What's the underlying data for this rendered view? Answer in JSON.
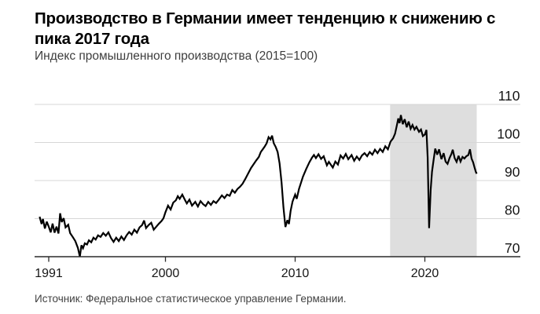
{
  "header": {
    "title_line1": "Производство в Германии имеет тенденцию к снижению с",
    "title_line2": "пика 2017 года",
    "subtitle": "Индекс промышленного производства (2015=100)"
  },
  "footer": {
    "source": "Источник: Федеральное статистическое управление Германии."
  },
  "chart_data": {
    "type": "line",
    "title": "Производство в Германии имеет тенденцию к снижению с пика 2017 года",
    "subtitle": "Индекс промышленного производства (2015=100)",
    "source": "Источник: Федеральное статистическое управление Германии.",
    "xlabel": "",
    "ylabel": "",
    "xlim": [
      1989.9,
      2027.4
    ],
    "ylim": [
      70,
      110
    ],
    "grid": true,
    "legend_position": "none",
    "x_ticks": [
      1991,
      2000,
      2010,
      2020
    ],
    "x_tick_labels": [
      "1991",
      "2000",
      "2010",
      "2020"
    ],
    "y_ticks": [
      70,
      80,
      90,
      100,
      110
    ],
    "y_tick_labels": [
      "70",
      "80",
      "90",
      "100",
      "110"
    ],
    "highlight_band": {
      "from": 2017.32,
      "to": 2024.0,
      "color": "#dedede",
      "meaning": "период снижения с пика 2017 года"
    },
    "line_color": "#000000",
    "grid_color": "#d7d7d7",
    "axis_color": "#2a2a2a",
    "label_color": "#161616",
    "series": [
      {
        "name": "Индекс промышленного производства Германии (2015=100)",
        "points": [
          [
            1990.3,
            80.5
          ],
          [
            1990.45,
            78.6
          ],
          [
            1990.55,
            79.9
          ],
          [
            1990.7,
            77.4
          ],
          [
            1990.85,
            79.2
          ],
          [
            1991.0,
            77.9
          ],
          [
            1991.15,
            76.4
          ],
          [
            1991.3,
            78.7
          ],
          [
            1991.45,
            76.3
          ],
          [
            1991.6,
            77.9
          ],
          [
            1991.75,
            76.1
          ],
          [
            1991.88,
            81.4
          ],
          [
            1992.0,
            79.1
          ],
          [
            1992.15,
            80.1
          ],
          [
            1992.3,
            77.7
          ],
          [
            1992.5,
            78.4
          ],
          [
            1992.65,
            76.2
          ],
          [
            1992.85,
            75.2
          ],
          [
            1993.05,
            74.1
          ],
          [
            1993.25,
            72.3
          ],
          [
            1993.4,
            70.0
          ],
          [
            1993.52,
            73.0
          ],
          [
            1993.64,
            72.2
          ],
          [
            1993.78,
            73.5
          ],
          [
            1993.95,
            73.2
          ],
          [
            1994.1,
            74.3
          ],
          [
            1994.28,
            73.8
          ],
          [
            1994.45,
            75.0
          ],
          [
            1994.62,
            74.5
          ],
          [
            1994.8,
            75.6
          ],
          [
            1995.0,
            75.2
          ],
          [
            1995.2,
            76.2
          ],
          [
            1995.4,
            75.5
          ],
          [
            1995.6,
            76.4
          ],
          [
            1995.8,
            74.9
          ],
          [
            1996.0,
            73.9
          ],
          [
            1996.2,
            75.0
          ],
          [
            1996.4,
            74.1
          ],
          [
            1996.6,
            75.3
          ],
          [
            1996.8,
            74.4
          ],
          [
            1997.0,
            75.6
          ],
          [
            1997.2,
            76.5
          ],
          [
            1997.4,
            75.8
          ],
          [
            1997.6,
            77.1
          ],
          [
            1997.8,
            76.3
          ],
          [
            1998.0,
            77.7
          ],
          [
            1998.2,
            78.3
          ],
          [
            1998.35,
            79.5
          ],
          [
            1998.5,
            77.5
          ],
          [
            1998.7,
            78.3
          ],
          [
            1998.9,
            78.9
          ],
          [
            1999.1,
            77.1
          ],
          [
            1999.3,
            77.9
          ],
          [
            1999.5,
            78.7
          ],
          [
            1999.7,
            79.4
          ],
          [
            1999.85,
            80.1
          ],
          [
            2000.0,
            81.7
          ],
          [
            2000.2,
            83.4
          ],
          [
            2000.4,
            82.4
          ],
          [
            2000.6,
            84.2
          ],
          [
            2000.8,
            84.8
          ],
          [
            2000.95,
            85.9
          ],
          [
            2001.1,
            85.2
          ],
          [
            2001.3,
            86.3
          ],
          [
            2001.5,
            84.9
          ],
          [
            2001.65,
            84.0
          ],
          [
            2001.85,
            85.0
          ],
          [
            2002.05,
            83.4
          ],
          [
            2002.3,
            84.4
          ],
          [
            2002.5,
            83.2
          ],
          [
            2002.7,
            84.6
          ],
          [
            2002.9,
            83.8
          ],
          [
            2003.1,
            83.3
          ],
          [
            2003.3,
            84.4
          ],
          [
            2003.5,
            83.6
          ],
          [
            2003.7,
            84.6
          ],
          [
            2003.9,
            84.1
          ],
          [
            2004.1,
            84.9
          ],
          [
            2004.35,
            86.1
          ],
          [
            2004.55,
            85.4
          ],
          [
            2004.75,
            86.3
          ],
          [
            2004.95,
            86.0
          ],
          [
            2005.15,
            87.5
          ],
          [
            2005.35,
            86.8
          ],
          [
            2005.55,
            87.8
          ],
          [
            2005.75,
            88.4
          ],
          [
            2005.95,
            89.2
          ],
          [
            2006.15,
            90.4
          ],
          [
            2006.4,
            92.0
          ],
          [
            2006.6,
            93.3
          ],
          [
            2006.8,
            94.3
          ],
          [
            2007.0,
            95.3
          ],
          [
            2007.2,
            96.2
          ],
          [
            2007.35,
            97.5
          ],
          [
            2007.5,
            98.2
          ],
          [
            2007.65,
            98.9
          ],
          [
            2007.8,
            99.8
          ],
          [
            2007.95,
            101.4
          ],
          [
            2008.1,
            100.8
          ],
          [
            2008.22,
            101.8
          ],
          [
            2008.35,
            99.8
          ],
          [
            2008.5,
            98.8
          ],
          [
            2008.65,
            97.5
          ],
          [
            2008.8,
            94.5
          ],
          [
            2008.95,
            89.5
          ],
          [
            2009.1,
            83.0
          ],
          [
            2009.25,
            77.8
          ],
          [
            2009.4,
            79.6
          ],
          [
            2009.52,
            78.6
          ],
          [
            2009.65,
            82.0
          ],
          [
            2009.8,
            84.5
          ],
          [
            2010.0,
            86.3
          ],
          [
            2010.12,
            85.2
          ],
          [
            2010.3,
            87.8
          ],
          [
            2010.6,
            91.0
          ],
          [
            2010.85,
            93.0
          ],
          [
            2011.1,
            94.8
          ],
          [
            2011.3,
            96.0
          ],
          [
            2011.45,
            96.7
          ],
          [
            2011.6,
            95.9
          ],
          [
            2011.8,
            96.9
          ],
          [
            2012.0,
            95.7
          ],
          [
            2012.2,
            96.4
          ],
          [
            2012.45,
            94.0
          ],
          [
            2012.6,
            94.9
          ],
          [
            2012.9,
            93.4
          ],
          [
            2013.1,
            95.0
          ],
          [
            2013.3,
            94.2
          ],
          [
            2013.5,
            96.6
          ],
          [
            2013.7,
            95.8
          ],
          [
            2013.9,
            97.0
          ],
          [
            2014.1,
            95.6
          ],
          [
            2014.35,
            96.7
          ],
          [
            2014.55,
            95.2
          ],
          [
            2014.75,
            96.3
          ],
          [
            2014.95,
            95.4
          ],
          [
            2015.15,
            96.6
          ],
          [
            2015.35,
            97.2
          ],
          [
            2015.55,
            96.4
          ],
          [
            2015.75,
            97.5
          ],
          [
            2015.95,
            96.8
          ],
          [
            2016.15,
            98.1
          ],
          [
            2016.35,
            97.2
          ],
          [
            2016.55,
            98.3
          ],
          [
            2016.75,
            97.5
          ],
          [
            2016.95,
            99.0
          ],
          [
            2017.15,
            98.2
          ],
          [
            2017.35,
            100.2
          ],
          [
            2017.55,
            101.1
          ],
          [
            2017.7,
            102.3
          ],
          [
            2017.85,
            104.6
          ],
          [
            2017.95,
            106.3
          ],
          [
            2018.05,
            105.1
          ],
          [
            2018.15,
            107.2
          ],
          [
            2018.3,
            104.8
          ],
          [
            2018.45,
            106.1
          ],
          [
            2018.6,
            104.0
          ],
          [
            2018.75,
            105.5
          ],
          [
            2018.9,
            103.6
          ],
          [
            2019.05,
            104.6
          ],
          [
            2019.2,
            103.4
          ],
          [
            2019.35,
            104.1
          ],
          [
            2019.55,
            102.8
          ],
          [
            2019.7,
            103.4
          ],
          [
            2019.85,
            101.7
          ],
          [
            2020.0,
            102.1
          ],
          [
            2020.12,
            103.3
          ],
          [
            2020.22,
            96.0
          ],
          [
            2020.33,
            77.5
          ],
          [
            2020.45,
            87.5
          ],
          [
            2020.55,
            92.3
          ],
          [
            2020.68,
            95.5
          ],
          [
            2020.8,
            98.4
          ],
          [
            2020.95,
            96.8
          ],
          [
            2021.1,
            98.2
          ],
          [
            2021.28,
            95.6
          ],
          [
            2021.45,
            97.2
          ],
          [
            2021.6,
            95.0
          ],
          [
            2021.75,
            94.4
          ],
          [
            2021.9,
            95.9
          ],
          [
            2022.05,
            97.0
          ],
          [
            2022.15,
            98.1
          ],
          [
            2022.3,
            95.9
          ],
          [
            2022.45,
            94.9
          ],
          [
            2022.6,
            96.5
          ],
          [
            2022.75,
            95.0
          ],
          [
            2022.9,
            96.2
          ],
          [
            2023.05,
            95.8
          ],
          [
            2023.2,
            96.4
          ],
          [
            2023.35,
            96.7
          ],
          [
            2023.48,
            98.2
          ],
          [
            2023.6,
            95.8
          ],
          [
            2023.72,
            94.8
          ],
          [
            2023.84,
            93.3
          ],
          [
            2023.94,
            92.2
          ],
          [
            2024.0,
            91.8
          ]
        ]
      }
    ]
  }
}
